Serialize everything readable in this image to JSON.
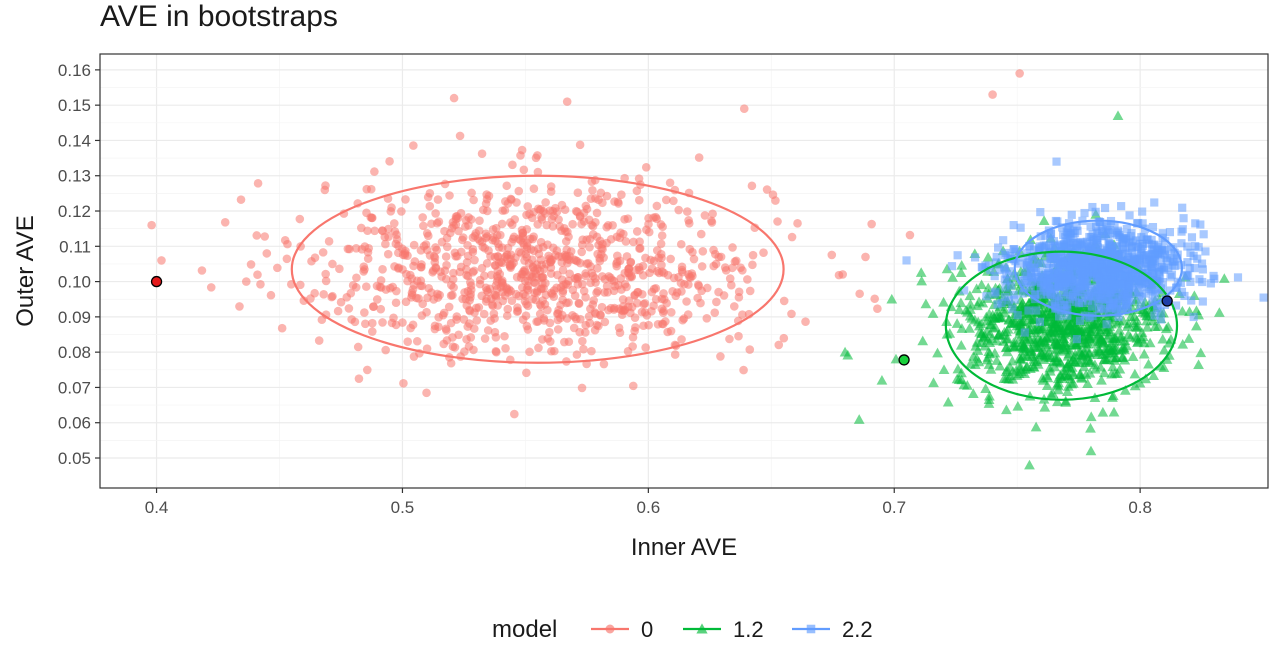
{
  "chart_data": {
    "type": "scatter",
    "title": "AVE in bootstraps",
    "xlabel": "Inner AVE",
    "ylabel": "Outer AVE",
    "xlim": [
      0.377,
      0.852
    ],
    "ylim": [
      0.0415,
      0.1645
    ],
    "x_ticks": [
      0.4,
      0.5,
      0.6,
      0.7,
      0.8
    ],
    "x_tick_labels": [
      "0.4",
      "0.5",
      "0.6",
      "0.7",
      "0.8"
    ],
    "y_ticks": [
      0.05,
      0.06,
      0.07,
      0.08,
      0.09,
      0.1,
      0.11,
      0.12,
      0.13,
      0.14,
      0.15,
      0.16
    ],
    "y_tick_labels": [
      "0.05",
      "0.06",
      "0.07",
      "0.08",
      "0.09",
      "0.10",
      "0.11",
      "0.12",
      "0.13",
      "0.14",
      "0.15",
      "0.16"
    ],
    "grid": true,
    "legend": {
      "title": "model",
      "position": "bottom",
      "entries": [
        "0",
        "1.2",
        "2.2"
      ]
    },
    "series": [
      {
        "name": "0",
        "color": "#F8766D",
        "marker": "circle",
        "n_points": 1000,
        "center": [
          0.555,
          0.1035
        ],
        "spread": [
          0.047,
          0.0125
        ],
        "ellipse": {
          "center": [
            0.555,
            0.1035
          ],
          "semi_axes": [
            0.1,
            0.0265
          ]
        },
        "original_point": [
          0.4,
          0.1
        ],
        "outliers": [
          [
            0.751,
            0.159
          ],
          [
            0.74,
            0.153
          ],
          [
            0.521,
            0.152
          ],
          [
            0.567,
            0.151
          ],
          [
            0.639,
            0.149
          ],
          [
            0.398,
            0.116
          ],
          [
            0.402,
            0.106
          ]
        ]
      },
      {
        "name": "1.2",
        "color": "#00BA38",
        "marker": "triangle",
        "n_points": 1000,
        "center": [
          0.768,
          0.0875
        ],
        "spread": [
          0.021,
          0.0095
        ],
        "ellipse": {
          "center": [
            0.768,
            0.0875
          ],
          "semi_axes": [
            0.047,
            0.021
          ]
        },
        "original_point": [
          0.704,
          0.0778
        ],
        "outliers": [
          [
            0.791,
            0.147
          ],
          [
            0.755,
            0.048
          ],
          [
            0.78,
            0.052
          ],
          [
            0.68,
            0.08
          ],
          [
            0.699,
            0.095
          ],
          [
            0.695,
            0.072
          ]
        ]
      },
      {
        "name": "2.2",
        "color": "#619CFF",
        "marker": "square",
        "n_points": 1000,
        "center": [
          0.783,
          0.1038
        ],
        "spread": [
          0.018,
          0.0062
        ],
        "ellipse": {
          "center": [
            0.783,
            0.1038
          ],
          "semi_axes": [
            0.034,
            0.0135
          ]
        },
        "original_point": [
          0.811,
          0.0945
        ],
        "outliers": [
          [
            0.766,
            0.134
          ],
          [
            0.705,
            0.106
          ]
        ]
      }
    ]
  }
}
